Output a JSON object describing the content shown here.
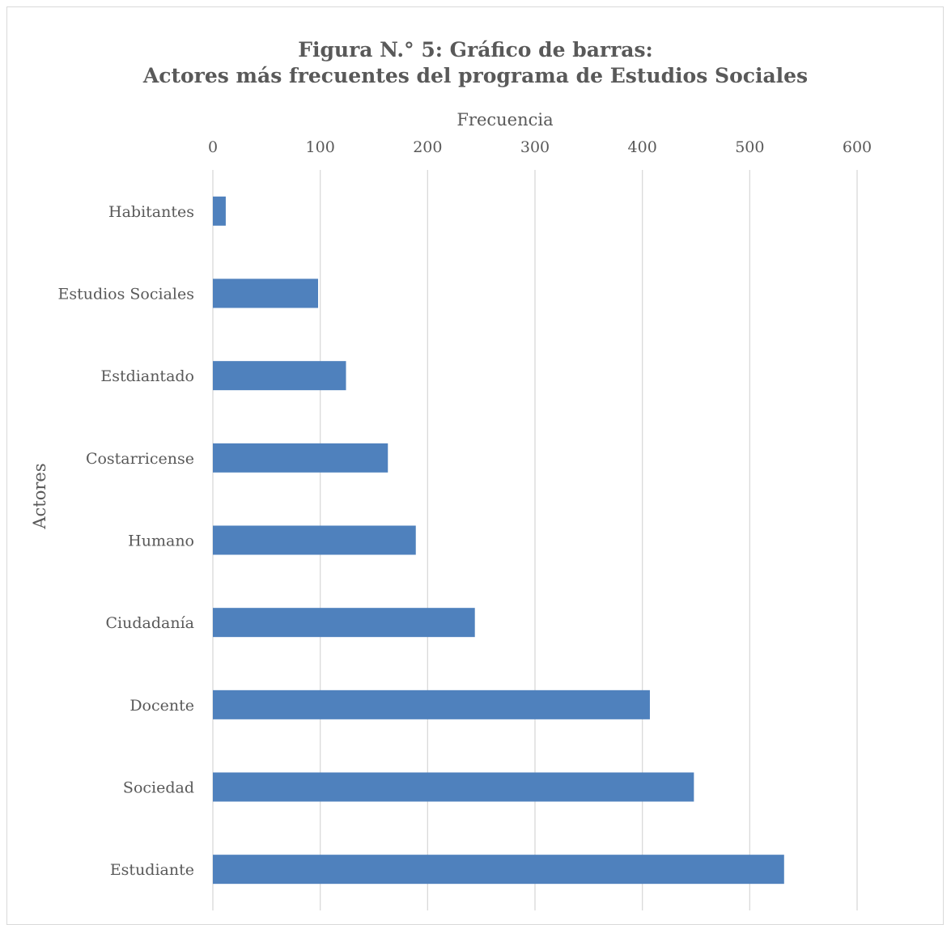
{
  "chart_data": {
    "type": "bar",
    "orientation": "horizontal",
    "title_lines": [
      "Figura N.° 5: Gráfico de barras:",
      "Actores más frecuentes del programa de Estudios Sociales"
    ],
    "xlabel": "Frecuencia",
    "ylabel": "Actores",
    "xlim": [
      0,
      600
    ],
    "xticks": [
      "0",
      "100",
      "200",
      "300",
      "400",
      "500",
      "600"
    ],
    "xaxis_position": "top",
    "grid": true,
    "categories": [
      "Habitantes",
      "Estudios Sociales",
      "Estdiantado",
      "Costarricense",
      "Humano",
      "Ciudadanía",
      "Docente",
      "Sociedad",
      "Estudiante"
    ],
    "values": [
      12,
      98,
      124,
      163,
      189,
      244,
      407,
      448,
      532
    ],
    "bar_color": "#4f81bd",
    "grid_color": "#d9d9d9",
    "text_color": "#595959"
  }
}
